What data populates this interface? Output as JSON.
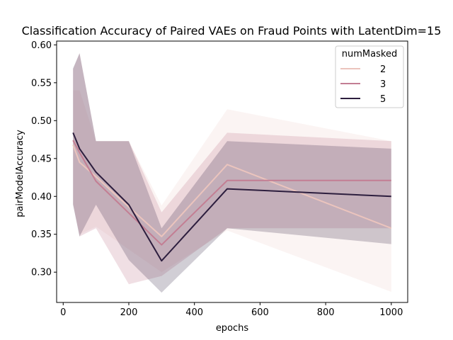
{
  "chart_data": {
    "type": "line",
    "title": "Classification Accuracy of Paired VAEs on Fraud Points with LatentDim=15",
    "xlabel": "epochs",
    "ylabel": "pairModelAccuracy",
    "xlim": [
      -20,
      1050
    ],
    "ylim": [
      0.26,
      0.605
    ],
    "xticks": [
      0,
      200,
      400,
      600,
      800,
      1000
    ],
    "yticks": [
      0.3,
      0.35,
      0.4,
      0.45,
      0.5,
      0.55,
      0.6
    ],
    "xtick_labels": [
      "0",
      "200",
      "400",
      "600",
      "800",
      "1000"
    ],
    "ytick_labels": [
      "0.30",
      "0.35",
      "0.40",
      "0.45",
      "0.50",
      "0.55",
      "0.60"
    ],
    "grid": false,
    "legend": {
      "title": "numMasked",
      "placement": "top-right"
    },
    "x": [
      30,
      50,
      100,
      200,
      300,
      500,
      1000
    ],
    "series": [
      {
        "name": "2",
        "color": "#ebc4bd",
        "band_opacity": 0.18,
        "values": [
          0.468,
          0.445,
          0.426,
          0.386,
          0.347,
          0.442,
          0.358
        ],
        "ci_low": [
          0.39,
          0.35,
          0.36,
          0.33,
          0.3,
          0.355,
          0.274
        ],
        "ci_high": [
          0.54,
          0.54,
          0.473,
          0.473,
          0.388,
          0.515,
          0.473
        ]
      },
      {
        "name": "3",
        "color": "#c37e93",
        "band_opacity": 0.25,
        "values": [
          0.474,
          0.458,
          0.42,
          0.378,
          0.336,
          0.421,
          0.421
        ],
        "ci_low": [
          0.39,
          0.347,
          0.358,
          0.284,
          0.295,
          0.358,
          0.358
        ],
        "ci_high": [
          0.568,
          0.589,
          0.473,
          0.473,
          0.379,
          0.484,
          0.473
        ]
      },
      {
        "name": "5",
        "color": "#2d1e3e",
        "band_opacity": 0.22,
        "values": [
          0.484,
          0.463,
          0.432,
          0.389,
          0.315,
          0.41,
          0.4
        ],
        "ci_low": [
          0.389,
          0.347,
          0.389,
          0.316,
          0.273,
          0.358,
          0.337
        ],
        "ci_high": [
          0.569,
          0.589,
          0.473,
          0.473,
          0.358,
          0.473,
          0.463
        ]
      }
    ]
  }
}
